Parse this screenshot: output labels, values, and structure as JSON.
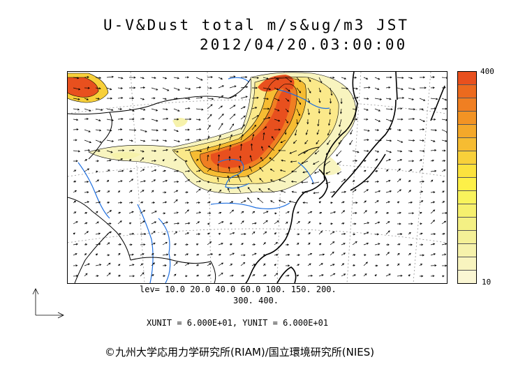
{
  "title": {
    "line1": "U-V&Dust total m/s&ug/m3 JST",
    "line2": "2012/04/20.03:00:00"
  },
  "colorbar": {
    "max_label": "400",
    "min_label": "10",
    "colors_top_to_bottom": [
      "#e8501e",
      "#ec6a1e",
      "#f07f22",
      "#f29324",
      "#f4a82a",
      "#f6bc32",
      "#f8d03a",
      "#fbe23e",
      "#fdf048",
      "#f8f35c",
      "#f6f06e",
      "#f4f084",
      "#f4f097",
      "#f6f2ab",
      "#f8f4bf",
      "#faf6d3"
    ]
  },
  "levels": {
    "line1": "lev= 10.0 20.0 40.0 60.0 100. 150. 200.",
    "line2": "300. 400."
  },
  "units": "XUNIT = 6.000E+01, YUNIT = 6.000E+01",
  "copyright": "©九州大学応用力学研究所(RIAM)/国立環境研究所(NIES)",
  "colors": {
    "coastline": "#000000",
    "rivers": "#1e6fe0",
    "dust_high": "#e8501e",
    "dust_mid": "#f4a82a",
    "dust_low": "#f8f4bf"
  },
  "icons": {
    "reference_arrow": "axis-arrow-icon"
  }
}
